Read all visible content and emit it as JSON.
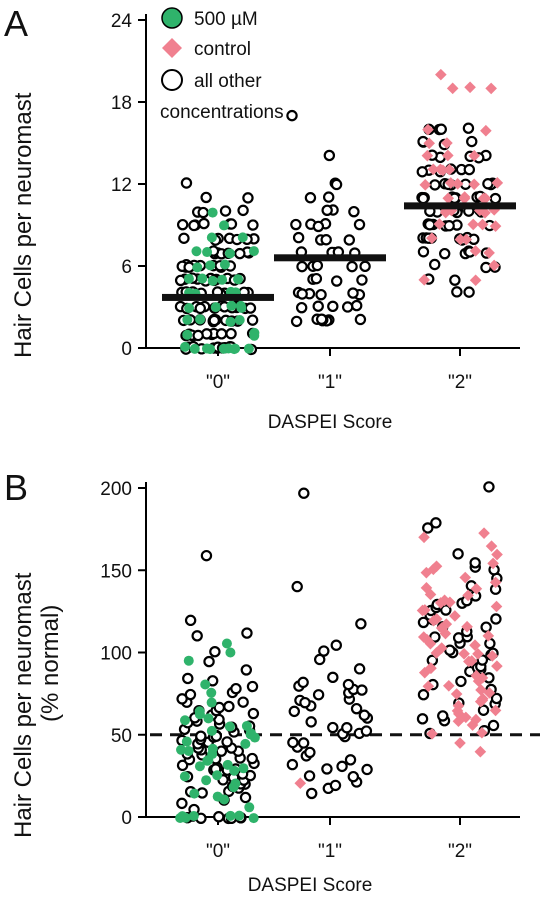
{
  "figure": {
    "panel_a_label": "A",
    "panel_b_label": "B"
  },
  "legend": {
    "items": [
      {
        "label": "500 µM",
        "marker": "filled-circle",
        "color": "#2fb36b"
      },
      {
        "label": "control",
        "marker": "diamond",
        "color": "#f0808f"
      },
      {
        "label": "all other",
        "marker": "open-circle",
        "color": "#000000"
      },
      {
        "label": "concentrations",
        "marker": "none",
        "color": "#000000"
      }
    ]
  },
  "colors": {
    "treated": "#2fb36b",
    "control": "#f0808f",
    "other": "#000000",
    "mean_bar": "#111111"
  },
  "chart_data": [
    {
      "type": "scatter",
      "panel": "A",
      "title": "",
      "xlabel": "DASPEI Score",
      "ylabel": "Hair Cells per neuromast",
      "categories": [
        "\"0\"",
        "\"1\"",
        "\"2\""
      ],
      "ylim": [
        0,
        24
      ],
      "yticks": [
        0,
        6,
        12,
        18,
        24
      ],
      "grid": false,
      "legend_position": "top-left",
      "means": [
        3.7,
        6.6,
        10.4
      ],
      "series": [
        {
          "name": "500 µM",
          "marker": "filled-circle",
          "category_index": 0,
          "values": [
            0,
            0,
            0,
            0,
            0,
            0,
            0,
            0,
            0,
            1,
            1,
            1,
            2,
            2,
            2,
            2,
            3,
            3,
            3,
            3,
            3,
            4,
            4,
            4,
            4,
            4,
            5,
            5,
            5,
            5,
            5,
            6,
            6,
            6,
            7,
            7,
            7,
            7,
            8,
            8,
            9,
            10
          ]
        },
        {
          "name": "control",
          "marker": "diamond",
          "category_index": 2,
          "values": [
            5,
            5,
            6,
            7,
            7,
            8,
            8,
            8,
            9,
            9,
            9,
            9,
            10,
            10,
            10,
            10,
            10,
            10,
            11,
            11,
            11,
            11,
            11,
            12,
            12,
            12,
            12,
            12,
            13,
            13,
            13,
            13,
            14,
            14,
            14,
            15,
            15,
            16,
            16,
            19,
            19,
            19,
            20
          ]
        },
        {
          "name": "all other concentrations",
          "marker": "open-circle",
          "category_index": 0,
          "values": [
            0,
            0,
            0,
            0,
            0,
            0,
            0,
            0,
            0,
            0,
            0,
            0,
            1,
            1,
            1,
            1,
            1,
            1,
            1,
            1,
            1,
            1,
            1,
            2,
            2,
            2,
            2,
            2,
            2,
            2,
            2,
            2,
            2,
            2,
            2,
            3,
            3,
            3,
            3,
            3,
            3,
            3,
            3,
            3,
            3,
            3,
            3,
            3,
            3,
            4,
            4,
            4,
            4,
            4,
            4,
            4,
            4,
            4,
            4,
            4,
            4,
            4,
            5,
            5,
            5,
            5,
            5,
            5,
            5,
            5,
            5,
            5,
            5,
            6,
            6,
            6,
            6,
            6,
            6,
            6,
            6,
            6,
            6,
            7,
            7,
            7,
            7,
            7,
            7,
            7,
            7,
            8,
            8,
            8,
            8,
            8,
            8,
            8,
            9,
            9,
            9,
            9,
            9,
            9,
            9,
            10,
            10,
            10,
            10,
            11,
            11,
            12
          ]
        },
        {
          "name": "all other concentrations",
          "marker": "open-circle",
          "category_index": 1,
          "values": [
            2,
            2,
            2,
            2,
            2,
            2,
            2,
            2,
            3,
            3,
            3,
            3,
            3,
            4,
            4,
            4,
            4,
            4,
            4,
            5,
            5,
            5,
            5,
            6,
            6,
            6,
            6,
            6,
            7,
            7,
            7,
            7,
            7,
            8,
            8,
            8,
            8,
            9,
            9,
            9,
            9,
            9,
            10,
            10,
            10,
            11,
            11,
            12,
            12,
            14,
            17
          ]
        },
        {
          "name": "all other concentrations",
          "marker": "open-circle",
          "category_index": 2,
          "values": [
            4,
            4,
            5,
            5,
            6,
            6,
            6,
            7,
            7,
            7,
            7,
            7,
            7,
            8,
            8,
            8,
            8,
            8,
            8,
            8,
            8,
            9,
            9,
            9,
            9,
            9,
            9,
            9,
            9,
            10,
            10,
            10,
            10,
            10,
            10,
            10,
            10,
            10,
            10,
            11,
            11,
            11,
            11,
            11,
            11,
            11,
            11,
            11,
            12,
            12,
            12,
            12,
            12,
            12,
            12,
            12,
            13,
            13,
            13,
            13,
            13,
            13,
            14,
            14,
            14,
            14,
            14,
            15,
            15,
            15,
            15,
            16,
            16,
            16,
            16
          ]
        }
      ]
    },
    {
      "type": "scatter",
      "panel": "B",
      "title": "",
      "xlabel": "DASPEI Score",
      "ylabel": "Hair Cells per neuromast",
      "ylabel2": "(% normal)",
      "categories": [
        "\"0\"",
        "\"1\"",
        "\"2\""
      ],
      "ylim": [
        0,
        200
      ],
      "yticks": [
        0,
        50,
        100,
        150,
        200
      ],
      "grid": false,
      "reference_line": 50,
      "series": [
        {
          "name": "500 µM",
          "marker": "filled-circle",
          "category_index": 0,
          "values": [
            0,
            0,
            0,
            0,
            0,
            0,
            0,
            5,
            10,
            12,
            15,
            18,
            20,
            22,
            25,
            25,
            28,
            30,
            30,
            32,
            35,
            35,
            38,
            40,
            40,
            42,
            45,
            45,
            48,
            50,
            50,
            52,
            55,
            55,
            58,
            60,
            62,
            65,
            70,
            75,
            80,
            95,
            100,
            105
          ]
        },
        {
          "name": "control",
          "marker": "diamond",
          "category_index": 1,
          "values": [
            20
          ]
        },
        {
          "name": "control",
          "marker": "diamond",
          "category_index": 2,
          "values": [
            40,
            45,
            50,
            52,
            55,
            58,
            60,
            60,
            62,
            65,
            65,
            68,
            70,
            70,
            72,
            75,
            75,
            78,
            80,
            80,
            82,
            85,
            85,
            88,
            90,
            90,
            92,
            95,
            95,
            98,
            100,
            100,
            100,
            102,
            105,
            105,
            108,
            110,
            110,
            112,
            115,
            115,
            118,
            120,
            120,
            122,
            125,
            125,
            128,
            130,
            130,
            132,
            135,
            135,
            138,
            140,
            142,
            145,
            148,
            150,
            152,
            155,
            160,
            165,
            170,
            172
          ]
        },
        {
          "name": "all other concentrations",
          "marker": "open-circle",
          "category_index": 0,
          "values": [
            0,
            0,
            0,
            0,
            0,
            0,
            0,
            0,
            5,
            8,
            10,
            12,
            14,
            15,
            16,
            18,
            18,
            20,
            20,
            22,
            22,
            24,
            25,
            25,
            26,
            28,
            28,
            30,
            30,
            30,
            32,
            32,
            34,
            35,
            35,
            36,
            38,
            38,
            40,
            40,
            40,
            42,
            42,
            44,
            45,
            45,
            46,
            48,
            48,
            50,
            50,
            50,
            52,
            52,
            54,
            55,
            55,
            56,
            58,
            58,
            60,
            60,
            62,
            62,
            64,
            65,
            66,
            68,
            70,
            70,
            72,
            74,
            75,
            78,
            80,
            82,
            85,
            90,
            95,
            100,
            110,
            112,
            120,
            158
          ]
        },
        {
          "name": "all other concentrations",
          "marker": "open-circle",
          "category_index": 1,
          "values": [
            15,
            18,
            20,
            22,
            25,
            25,
            28,
            30,
            30,
            32,
            35,
            38,
            40,
            42,
            45,
            45,
            48,
            50,
            50,
            52,
            55,
            55,
            58,
            60,
            62,
            65,
            65,
            68,
            70,
            70,
            72,
            75,
            75,
            78,
            78,
            80,
            80,
            82,
            85,
            90,
            95,
            100,
            105,
            118,
            140,
            197
          ]
        },
        {
          "name": "all other concentrations",
          "marker": "open-circle",
          "category_index": 2,
          "values": [
            50,
            52,
            55,
            58,
            60,
            62,
            65,
            68,
            70,
            72,
            75,
            78,
            80,
            82,
            85,
            88,
            90,
            90,
            92,
            95,
            95,
            98,
            100,
            100,
            102,
            105,
            105,
            108,
            110,
            110,
            112,
            115,
            115,
            118,
            120,
            120,
            122,
            125,
            125,
            128,
            130,
            130,
            132,
            135,
            138,
            140,
            145,
            150,
            152,
            155,
            160,
            175,
            178,
            200
          ]
        }
      ]
    }
  ]
}
